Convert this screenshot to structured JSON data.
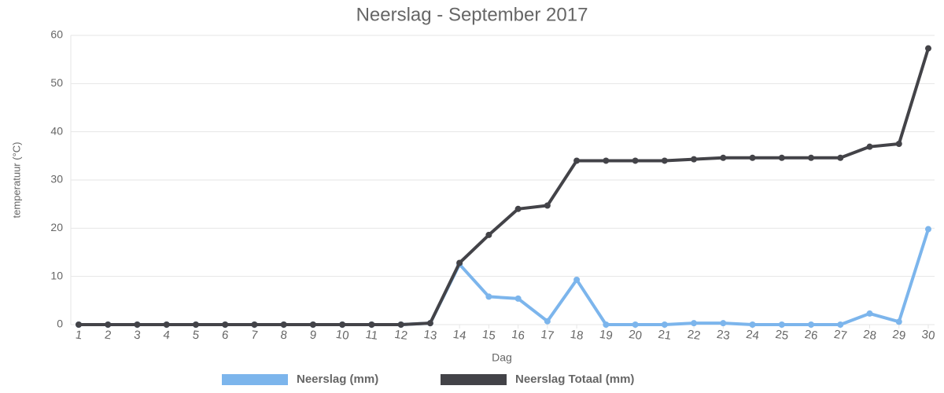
{
  "chart_data": {
    "type": "line",
    "title": "Neerslag - September 2017",
    "x_label": "Dag",
    "y_label": "temperatuur (°C)",
    "categories": [
      "1",
      "2",
      "3",
      "4",
      "5",
      "6",
      "7",
      "8",
      "9",
      "10",
      "11",
      "12",
      "13",
      "14",
      "15",
      "16",
      "17",
      "18",
      "19",
      "20",
      "21",
      "22",
      "23",
      "24",
      "25",
      "26",
      "27",
      "28",
      "29",
      "30"
    ],
    "series": [
      {
        "name": "Neerslag (mm)",
        "color": "#7cb5ec",
        "values": [
          0,
          0,
          0,
          0,
          0,
          0,
          0,
          0,
          0,
          0,
          0,
          0,
          0.3,
          12.5,
          5.8,
          5.4,
          0.7,
          9.3,
          0,
          0,
          0,
          0.3,
          0.3,
          0,
          0,
          0,
          0,
          2.3,
          0.6,
          19.8
        ]
      },
      {
        "name": "Neerslag Totaal (mm)",
        "color": "#434348",
        "values": [
          0,
          0,
          0,
          0,
          0,
          0,
          0,
          0,
          0,
          0,
          0,
          0,
          0.3,
          12.8,
          18.6,
          24.0,
          24.7,
          34.0,
          34.0,
          34.0,
          34.0,
          34.3,
          34.6,
          34.6,
          34.6,
          34.6,
          34.6,
          36.9,
          37.5,
          57.3
        ]
      }
    ],
    "ylim": [
      0,
      60
    ],
    "yticks": [
      0,
      10,
      20,
      30,
      40,
      50,
      60
    ],
    "grid": true,
    "legend": "bottom"
  }
}
